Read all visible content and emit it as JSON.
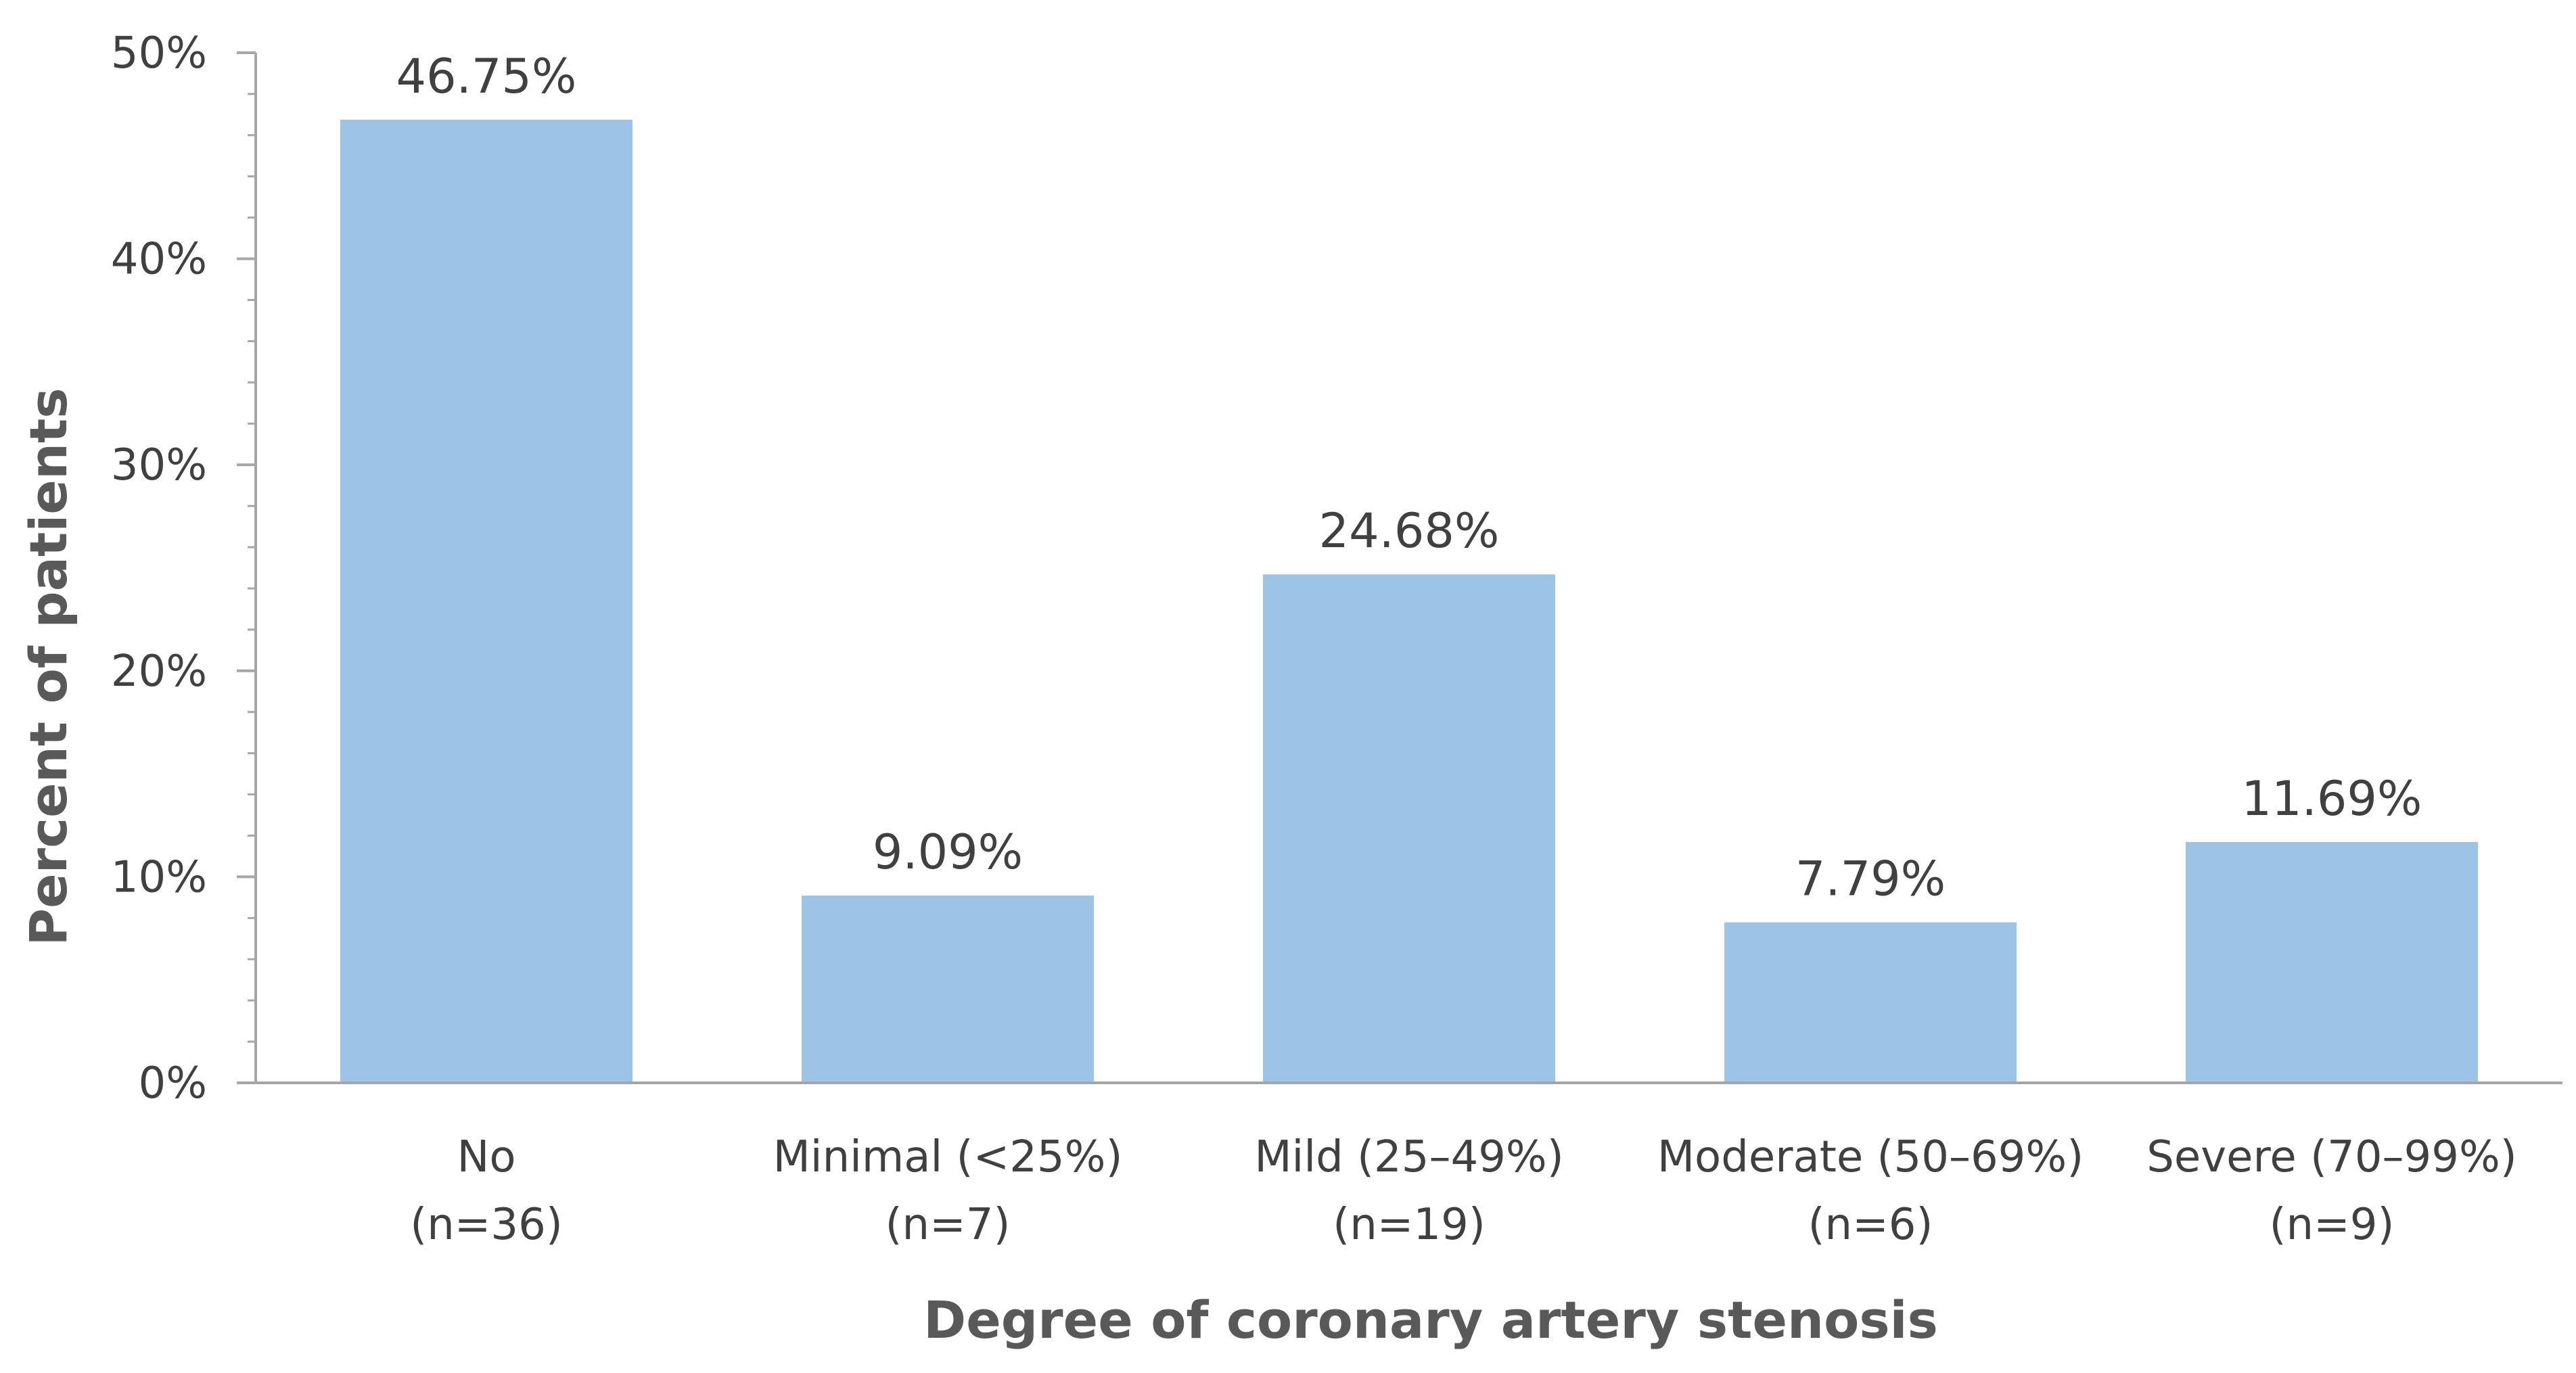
{
  "chart_data": {
    "type": "bar",
    "title": "",
    "xlabel": "Degree of coronary artery stenosis",
    "ylabel": "Percent of patients",
    "ylim": [
      0,
      50
    ],
    "y_ticks": [
      0,
      10,
      20,
      30,
      40,
      50
    ],
    "y_tick_labels": [
      "0%",
      "10%",
      "20%",
      "30%",
      "40%",
      "50%"
    ],
    "minor_ticks_per_major": 5,
    "grid": false,
    "legend": "none",
    "categories": [
      {
        "line1": "No",
        "line2": "(n=36)"
      },
      {
        "line1": "Minimal (<25%)",
        "line2": "(n=7)"
      },
      {
        "line1": "Mild (25–49%)",
        "line2": "(n=19)"
      },
      {
        "line1": "Moderate (50–69%)",
        "line2": "(n=6)"
      },
      {
        "line1": "Severe (70–99%)",
        "line2": "(n=9)"
      }
    ],
    "values": [
      46.75,
      9.09,
      24.68,
      7.79,
      11.69
    ],
    "data_labels": [
      "46.75%",
      "9.09%",
      "24.68%",
      "7.79%",
      "11.69%"
    ],
    "colors": {
      "bar": "#9dc3e6",
      "axis": "#a6a6a6",
      "text": "#404040",
      "title_text": "#595959"
    }
  }
}
